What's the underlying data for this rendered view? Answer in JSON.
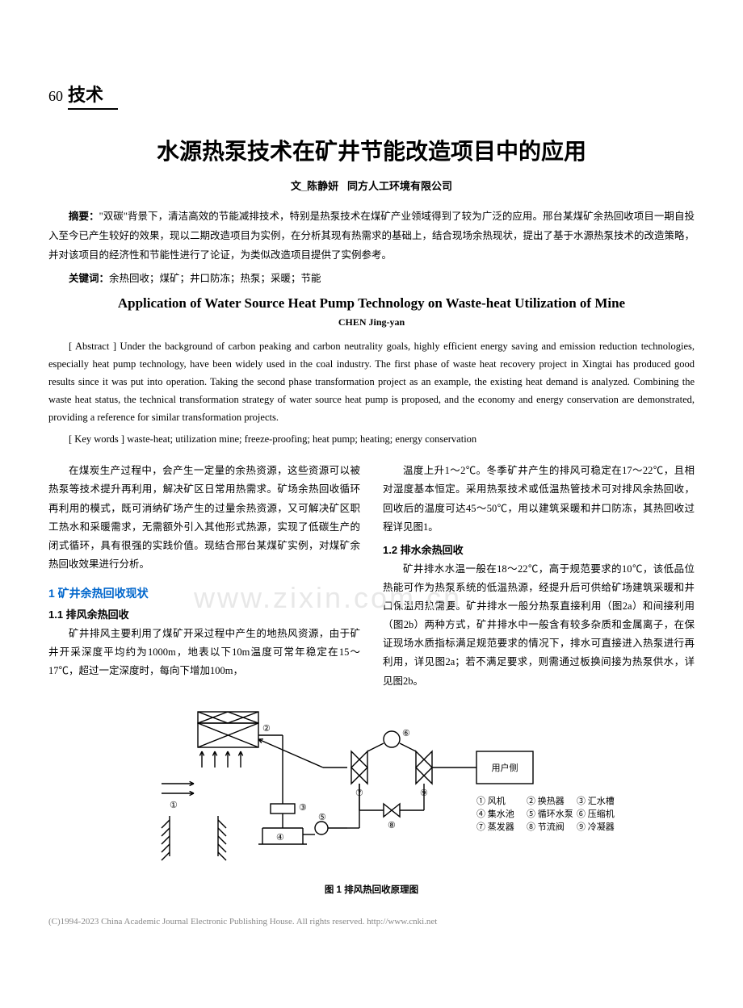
{
  "page_number": "60",
  "section_label": "技术",
  "title_cn": "水源热泵技术在矿井节能改造项目中的应用",
  "byline_prefix": "文_",
  "author_cn": "陈静妍",
  "affiliation_cn": "同方人工环境有限公司",
  "abstract_cn_label": "摘要：",
  "abstract_cn": "\"双碳\"背景下，清洁高效的节能减排技术，特别是热泵技术在煤矿产业领域得到了较为广泛的应用。邢台某煤矿余热回收项目一期自投入至今已产生较好的效果，现以二期改造项目为实例，在分析其现有热需求的基础上，结合现场余热现状，提出了基于水源热泵技术的改造策略，并对该项目的经济性和节能性进行了论证，为类似改造项目提供了实例参考。",
  "keywords_cn_label": "关键词：",
  "keywords_cn": "余热回收；煤矿；井口防冻；热泵；采暖；节能",
  "title_en": "Application of Water Source Heat Pump Technology on Waste-heat Utilization of Mine",
  "author_en": "CHEN Jing-yan",
  "abstract_en_label": "[ Abstract ] ",
  "abstract_en": "Under the background of carbon peaking and carbon neutrality goals, highly efficient energy saving and emission reduction technologies, especially heat pump technology, have been widely used in the coal industry. The first phase of waste heat recovery project in Xingtai has produced good results since it was put into operation. Taking the second phase transformation project as an example, the existing heat demand is analyzed. Combining the waste heat status, the technical transformation strategy of water source heat pump is proposed, and the economy and energy conservation are demonstrated, providing a reference for similar transformation projects.",
  "keywords_en_label": "[ Key words ] ",
  "keywords_en": "waste-heat; utilization mine; freeze-proofing; heat pump; heating; energy conservation",
  "intro_p1": "在煤炭生产过程中，会产生一定量的余热资源，这些资源可以被热泵等技术提升再利用，解决矿区日常用热需求。矿场余热回收循环再利用的模式，既可消纳矿场产生的过量余热资源，又可解决矿区职工热水和采暖需求，无需额外引入其他形式热源，实现了低碳生产的闭式循环，具有很强的实践价值。现结合邢台某煤矿实例，对煤矿余热回收效果进行分析。",
  "h2_1": "1 矿井余热回收现状",
  "h3_11": "1.1 排风余热回收",
  "p_11": "矿井排风主要利用了煤矿开采过程中产生的地热风资源，由于矿井开采深度平均约为1000m，地表以下10m温度可常年稳定在15～17℃，超过一定深度时，每向下增加100m，",
  "p_11b": "温度上升1～2℃。冬季矿井产生的排风可稳定在17～22℃，且相对湿度基本恒定。采用热泵技术或低温热管技术可对排风余热回收，回收后的温度可达45～50℃，用以建筑采暖和井口防冻，其热回收过程详见图1。",
  "h3_12": "1.2 排水余热回收",
  "p_12": "矿井排水水温一般在18～22℃，高于规范要求的10℃，该低品位热能可作为热泵系统的低温热源，经提升后可供给矿场建筑采暖和井口保温用热需要。矿井排水一般分热泵直接利用（图2a）和间接利用（图2b）两种方式，矿井排水中一般含有较多杂质和金属离子，在保证现场水质指标满足规范要求的情况下，排水可直接进入热泵进行再利用，详见图2a；若不满足要求，则需通过板换间接为热泵供水，详见图2b。",
  "figure1_caption": "图 1 排风热回收原理图",
  "watermark_text": "www.zixin.com.cn",
  "footer_text": "(C)1994-2023 China Academic Journal Electronic Publishing House. All rights reserved.    http://www.cnki.net",
  "diagram": {
    "type": "flowchart",
    "stroke_color": "#000000",
    "background": "#ffffff",
    "stroke_width": 1.4,
    "font_size": 11,
    "labels": {
      "user_side": "用户侧",
      "n1": "① 风机",
      "n2": "② 换热器",
      "n3": "③ 汇水槽",
      "n4": "④ 集水池",
      "n5": "⑤ 循环水泵",
      "n6": "⑥ 压缩机",
      "n7": "⑦ 蒸发器",
      "n8": "⑧ 节流阀",
      "n9": "⑨ 冷凝器"
    },
    "circle_nums": [
      "①",
      "②",
      "③",
      "④",
      "⑤",
      "⑥",
      "⑦",
      "⑧",
      "⑨"
    ]
  },
  "colors": {
    "heading_blue": "#0066cc",
    "text": "#000000",
    "watermark": "#e8e8e8",
    "footer": "#888888"
  }
}
